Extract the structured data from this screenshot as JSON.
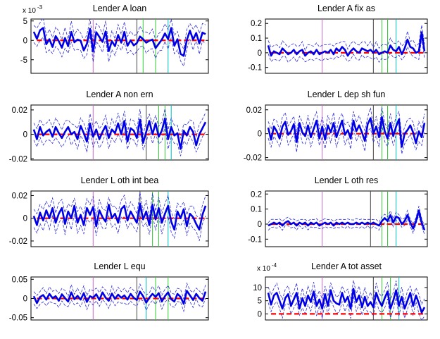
{
  "figure": {
    "line_colors": {
      "irf": "#0000e6",
      "band": "#2b2bd9",
      "zero": "#ff0000"
    }
  },
  "chart_data": [
    {
      "type": "line",
      "title": "Lender A loan",
      "exponent": "-3",
      "ylim": [
        -8.5,
        5.5
      ],
      "yticks": [
        5,
        0,
        -5
      ],
      "yticklabels": [
        "5",
        "0",
        "-5"
      ],
      "x_max": 56,
      "vlines": [
        {
          "x": 20,
          "color": "#cc66cc"
        },
        {
          "x": 34,
          "color": "#444444"
        },
        {
          "x": 36,
          "color": "#33cc33"
        },
        {
          "x": 40,
          "color": "#33cc33"
        },
        {
          "x": 44,
          "color": "#00bbbb"
        }
      ],
      "series": [
        {
          "values": [
            2.2,
            0.4,
            2.6,
            3.2,
            -1.0,
            0.3,
            -1.7,
            1.1,
            -0.2,
            -1.9,
            0.6,
            -1.5,
            2.2,
            -0.5,
            0.2,
            -0.1,
            -2.6,
            -0.9,
            3.0,
            -2.9,
            2.1,
            0.9,
            -0.4,
            2.3,
            -2.8,
            -0.2,
            -1.5,
            1.4,
            -0.6,
            2.2,
            -1.4,
            0.0,
            -1.3,
            -0.7,
            1.0,
            0.3,
            -0.6,
            -0.1,
            0.2,
            -2.0,
            -0.9,
            0.2,
            1.8,
            0.3,
            3.2,
            -1.4,
            0.3,
            -3.5,
            -4.0,
            0.1,
            2.5,
            0.2,
            1.9,
            -0.8,
            2.0,
            1.6
          ]
        }
      ],
      "band_width": 2.2
    },
    {
      "type": "line",
      "title": "Lender A fix as",
      "exponent": "",
      "ylim": [
        -0.14,
        0.23
      ],
      "yticks": [
        0.2,
        0.1,
        0,
        -0.1
      ],
      "yticklabels": [
        "0.2",
        "0.1",
        "0",
        "-0.1"
      ],
      "x_max": 56,
      "vlines": [
        {
          "x": 20,
          "color": "#cc66cc"
        },
        {
          "x": 38,
          "color": "#444444"
        },
        {
          "x": 41,
          "color": "#33cc33"
        },
        {
          "x": 43,
          "color": "#33cc33"
        },
        {
          "x": 46,
          "color": "#00bbbb"
        }
      ],
      "series": [
        {
          "values": [
            0.05,
            -0.02,
            0.01,
            0.0,
            -0.01,
            0.03,
            0.01,
            -0.01,
            0.0,
            0.02,
            -0.01,
            0.01,
            0.02,
            -0.02,
            0.0,
            0.01,
            -0.01,
            0.02,
            -0.01,
            0.0,
            0.01,
            0.0,
            0.02,
            -0.01,
            0.03,
            0.01,
            0.04,
            0.02,
            -0.02,
            0.01,
            0.03,
            0.01,
            0.0,
            0.03,
            0.02,
            0.01,
            0.02,
            0.0,
            0.02,
            -0.01,
            0.0,
            0.01,
            0.0,
            0.05,
            0.02,
            0.01,
            0.04,
            -0.01,
            0.03,
            0.09,
            0.04,
            0.03,
            0.0,
            0.01,
            0.14,
            0.01
          ]
        }
      ],
      "band_width": 0.045
    },
    {
      "type": "line",
      "title": "Lender A non ern",
      "exponent": "",
      "ylim": [
        -0.021,
        0.024
      ],
      "yticks": [
        0.02,
        0,
        -0.02
      ],
      "yticklabels": [
        "0.02",
        "0",
        "-0.02"
      ],
      "x_max": 56,
      "vlines": [
        {
          "x": 20,
          "color": "#cc66cc"
        },
        {
          "x": 37,
          "color": "#444444"
        },
        {
          "x": 41,
          "color": "#33cc33"
        },
        {
          "x": 43,
          "color": "#33cc33"
        },
        {
          "x": 45,
          "color": "#00bbbb"
        }
      ],
      "series": [
        {
          "values": [
            0.004,
            -0.004,
            0.006,
            -0.001,
            0.002,
            0.004,
            -0.002,
            0.006,
            0.001,
            -0.003,
            0.002,
            0.006,
            0.0,
            0.002,
            -0.004,
            0.007,
            0.001,
            -0.006,
            0.009,
            -0.002,
            0.004,
            -0.004,
            0.002,
            0.007,
            -0.003,
            0.004,
            0.001,
            0.009,
            0.0,
            0.011,
            -0.006,
            0.005,
            0.003,
            -0.003,
            0.012,
            -0.007,
            0.002,
            0.011,
            0.0,
            0.009,
            -0.002,
            0.003,
            0.013,
            -0.004,
            0.006,
            -0.001,
            0.001,
            -0.012,
            0.003,
            -0.001,
            0.006,
            0.002,
            -0.009,
            0.0,
            0.005,
            0.01
          ]
        }
      ],
      "band_width": 0.007
    },
    {
      "type": "line",
      "title": "Lender L dep sh fun",
      "exponent": "",
      "ylim": [
        -0.022,
        0.024
      ],
      "yticks": [
        0.02,
        0,
        -0.02
      ],
      "yticklabels": [
        "0.02",
        "0",
        "-0.02"
      ],
      "x_max": 56,
      "vlines": [
        {
          "x": 20,
          "color": "#cc66cc"
        },
        {
          "x": 38,
          "color": "#444444"
        },
        {
          "x": 41,
          "color": "#33cc33"
        },
        {
          "x": 43,
          "color": "#33cc33"
        },
        {
          "x": 46,
          "color": "#00bbbb"
        }
      ],
      "series": [
        {
          "values": [
            0.005,
            -0.005,
            0.006,
            0.002,
            -0.004,
            0.006,
            0.01,
            -0.001,
            0.002,
            0.008,
            -0.007,
            0.009,
            0.001,
            -0.002,
            0.007,
            -0.003,
            0.004,
            0.011,
            -0.004,
            0.006,
            -0.005,
            0.007,
            0.001,
            0.009,
            -0.003,
            0.004,
            0.011,
            -0.001,
            0.003,
            -0.004,
            0.011,
            0.002,
            0.007,
            0.001,
            -0.006,
            0.008,
            0.013,
            0.0,
            0.006,
            -0.003,
            0.014,
            0.002,
            -0.004,
            0.009,
            -0.002,
            0.006,
            0.012,
            -0.011,
            0.0,
            0.003,
            0.007,
            0.001,
            -0.008,
            0.002,
            -0.003,
            0.009
          ]
        }
      ],
      "band_width": 0.007
    },
    {
      "type": "line",
      "title": "Lender L oth int bea",
      "exponent": "",
      "ylim": [
        -0.025,
        0.024
      ],
      "yticks": [
        0.02,
        0,
        -0.02
      ],
      "yticklabels": [
        "0.02",
        "0",
        "-0.02"
      ],
      "x_max": 56,
      "vlines": [
        {
          "x": 20,
          "color": "#cc66cc"
        },
        {
          "x": 35,
          "color": "#444444"
        },
        {
          "x": 39,
          "color": "#33cc33"
        },
        {
          "x": 41,
          "color": "#33cc33"
        },
        {
          "x": 44,
          "color": "#00bbbb"
        }
      ],
      "series": [
        {
          "values": [
            0.002,
            -0.006,
            0.005,
            -0.002,
            0.007,
            0.0,
            0.009,
            -0.004,
            0.004,
            0.009,
            -0.005,
            0.006,
            0.0,
            0.011,
            -0.004,
            0.003,
            -0.006,
            0.009,
            0.003,
            0.01,
            -0.007,
            0.007,
            0.001,
            -0.003,
            0.012,
            0.0,
            0.004,
            -0.004,
            0.008,
            0.011,
            -0.002,
            0.006,
            0.001,
            -0.004,
            0.013,
            -0.001,
            0.006,
            -0.006,
            0.012,
            -0.001,
            0.009,
            -0.004,
            0.004,
            0.011,
            -0.003,
            -0.01,
            0.006,
            0.0,
            0.008,
            -0.007,
            0.004,
            0.001,
            -0.005,
            -0.01,
            0.003,
            0.011
          ]
        }
      ],
      "band_width": 0.008
    },
    {
      "type": "line",
      "title": "Lender L oth res",
      "exponent": "",
      "ylim": [
        -0.15,
        0.22
      ],
      "yticks": [
        0.2,
        0.1,
        0,
        -0.1
      ],
      "yticklabels": [
        "0.2",
        "0.1",
        "0",
        "-0.1"
      ],
      "x_max": 56,
      "vlines": [
        {
          "x": 20,
          "color": "#cc66cc"
        },
        {
          "x": 37,
          "color": "#444444"
        },
        {
          "x": 41,
          "color": "#33cc33"
        },
        {
          "x": 43,
          "color": "#33cc33"
        },
        {
          "x": 46,
          "color": "#00bbbb"
        }
      ],
      "series": [
        {
          "values": [
            -0.01,
            0.0,
            0.01,
            0.0,
            0.01,
            -0.01,
            0.01,
            0.02,
            0.0,
            0.01,
            -0.01,
            0.01,
            0.0,
            0.01,
            -0.01,
            0.01,
            0.0,
            0.01,
            -0.01,
            0.0,
            0.01,
            0.0,
            0.01,
            -0.01,
            0.01,
            0.0,
            0.01,
            0.0,
            0.01,
            0.0,
            0.0,
            0.01,
            0.0,
            0.01,
            0.0,
            0.01,
            0.0,
            0.01,
            0.0,
            -0.01,
            0.02,
            0.04,
            0.02,
            0.06,
            0.01,
            0.05,
            0.04,
            0.0,
            0.02,
            0.06,
            0.01,
            -0.03,
            0.02,
            0.09,
            0.01,
            -0.04
          ]
        }
      ],
      "band_width": 0.025
    },
    {
      "type": "line",
      "title": "Lender L equ",
      "exponent": "",
      "ylim": [
        -0.056,
        0.056
      ],
      "yticks": [
        0.05,
        0,
        -0.05
      ],
      "yticklabels": [
        "0.05",
        "0",
        "-0.05"
      ],
      "x_max": 56,
      "vlines": [
        {
          "x": 20,
          "color": "#cc66cc"
        },
        {
          "x": 34,
          "color": "#444444"
        },
        {
          "x": 37,
          "color": "#00bbbb"
        },
        {
          "x": 40,
          "color": "#33cc33"
        },
        {
          "x": 44,
          "color": "#33cc33"
        }
      ],
      "series": [
        {
          "values": [
            0.006,
            -0.012,
            0.004,
            0.009,
            -0.003,
            0.012,
            0.001,
            0.006,
            -0.006,
            0.011,
            0.001,
            -0.008,
            0.016,
            -0.002,
            0.007,
            -0.003,
            0.014,
            -0.009,
            0.006,
            0.002,
            0.011,
            -0.004,
            0.016,
            0.002,
            -0.006,
            0.013,
            -0.001,
            0.01,
            0.002,
            0.008,
            -0.003,
            0.012,
            0.002,
            -0.004,
            0.018,
            0.006,
            -0.011,
            0.002,
            0.012,
            0.004,
            0.014,
            -0.008,
            0.006,
            0.016,
            -0.002,
            -0.008,
            0.012,
            0.004,
            -0.014,
            0.02,
            0.008,
            -0.004,
            0.012,
            0.001,
            -0.006,
            0.018
          ]
        }
      ],
      "band_width": 0.016
    },
    {
      "type": "line",
      "title": "Lender A tot asset",
      "exponent": "-4",
      "ylim": [
        -2.3,
        14.0
      ],
      "yticks": [
        10,
        5,
        0
      ],
      "yticklabels": [
        "10",
        "5",
        "0"
      ],
      "x_max": 56,
      "vlines": [
        {
          "x": 20,
          "color": "#cc66cc"
        },
        {
          "x": 38,
          "color": "#444444"
        },
        {
          "x": 41,
          "color": "#33cc33"
        },
        {
          "x": 44,
          "color": "#33cc33"
        },
        {
          "x": 47,
          "color": "#00bbbb"
        }
      ],
      "series": [
        {
          "values": [
            8.0,
            3.5,
            7.0,
            8.0,
            5.0,
            2.0,
            6.0,
            7.5,
            3.0,
            5.5,
            8.0,
            2.0,
            6.0,
            3.0,
            7.0,
            4.5,
            8.5,
            3.0,
            5.5,
            2.0,
            7.5,
            3.0,
            9.0,
            5.0,
            4.0,
            3.5,
            8.0,
            4.5,
            6.5,
            2.0,
            9.5,
            4.5,
            7.0,
            2.5,
            6.5,
            3.0,
            4.5,
            2.5,
            8.0,
            5.0,
            3.0,
            6.0,
            8.5,
            2.0,
            5.0,
            9.0,
            3.0,
            6.5,
            2.0,
            5.0,
            8.0,
            3.0,
            7.0,
            4.0,
            0.5,
            2.5
          ]
        }
      ],
      "band_width": 3.0
    }
  ]
}
